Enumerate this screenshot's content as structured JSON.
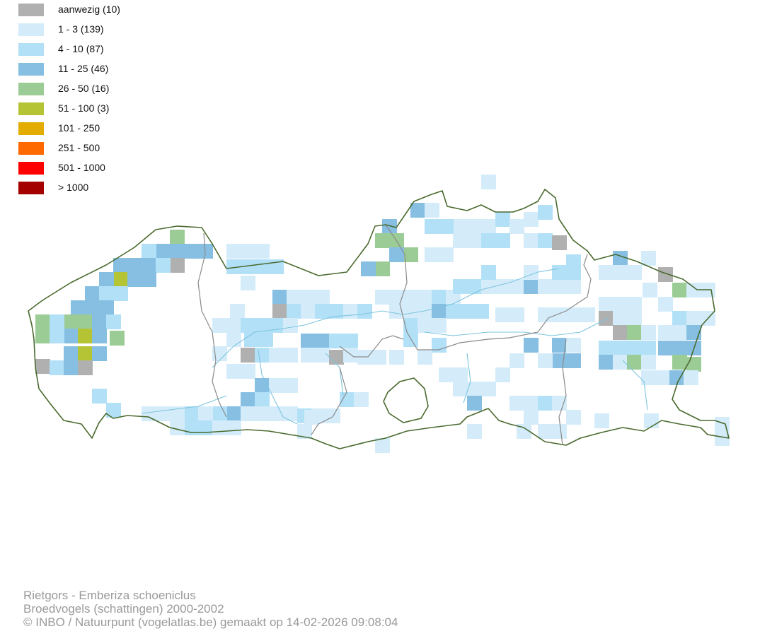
{
  "legend": {
    "items": [
      {
        "label": "aanwezig (10)",
        "color": "#b0b0b0"
      },
      {
        "label": "1 - 3 (139)",
        "color": "#d4ecfa"
      },
      {
        "label": "4 - 10 (87)",
        "color": "#b1e0f7"
      },
      {
        "label": "11 - 25 (46)",
        "color": "#86bfe2"
      },
      {
        "label": "26 - 50 (16)",
        "color": "#9ccc96"
      },
      {
        "label": "51 - 100 (3)",
        "color": "#b5c434"
      },
      {
        "label": "101 - 250",
        "color": "#e2ac00"
      },
      {
        "label": "251 - 500",
        "color": "#ff6a00"
      },
      {
        "label": "501 - 1000",
        "color": "#ff0000"
      },
      {
        "label": "> 1000",
        "color": "#a50000"
      }
    ]
  },
  "map": {
    "border_color": "#4a6a2e",
    "province_color": "#8a8a8a",
    "river_color": "#7cc4de"
  },
  "footer": {
    "line1": "Rietgors - Emberiza schoeniclus",
    "line2": "Broedvogels (schattingen) 2000-2002",
    "line3": "© INBO / Natuurpunt (vogelatlas.be) gemaakt op 14-02-2026 09:08:04"
  }
}
